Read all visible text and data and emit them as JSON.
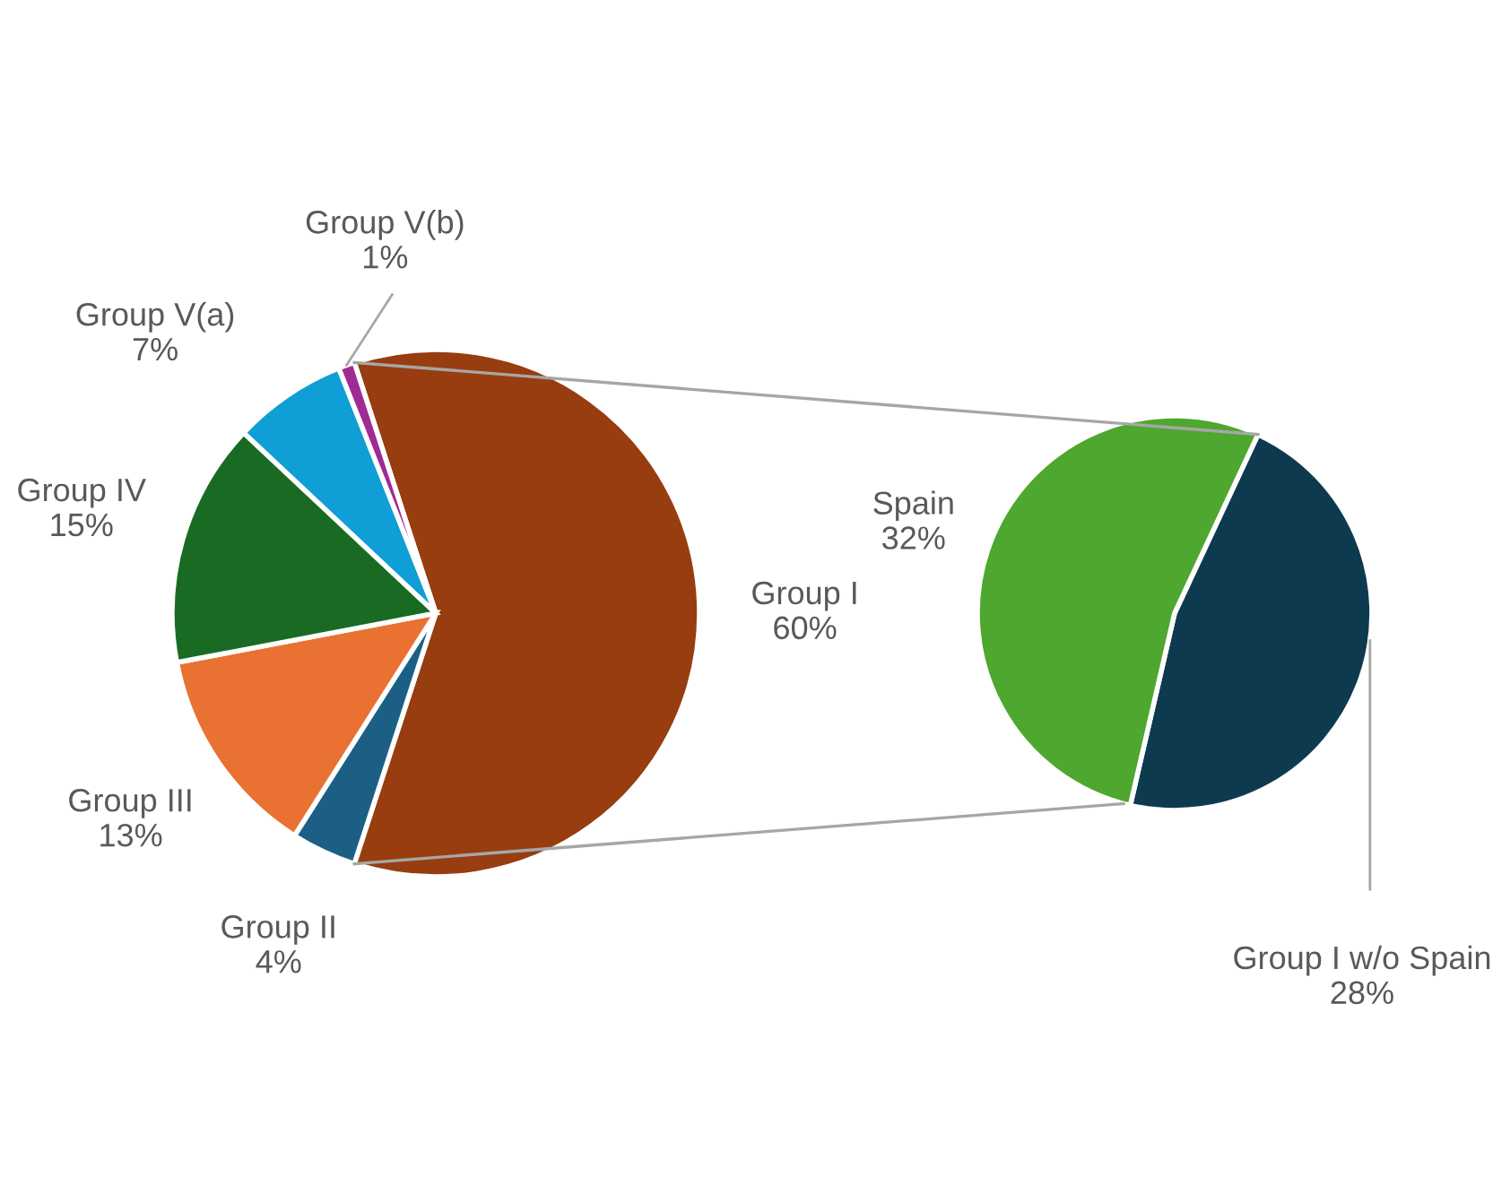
{
  "chart_data": [
    {
      "type": "pie",
      "categories": [
        "Group I",
        "Group II",
        "Group III",
        "Group IV",
        "Group V(a)",
        "Group V(b)"
      ],
      "values": [
        60,
        4,
        13,
        15,
        7,
        1
      ],
      "value_labels": [
        "60%",
        "4%",
        "13%",
        "15%",
        "7%",
        "1%"
      ],
      "colors": [
        "#973d10",
        "#1c5f85",
        "#e97132",
        "#196b24",
        "#0f9ed5",
        "#a02b93"
      ]
    },
    {
      "type": "pie",
      "categories": [
        "Group I w/o Spain",
        "Spain"
      ],
      "values": [
        28,
        32
      ],
      "value_labels": [
        "28%",
        "32%"
      ],
      "colors": [
        "#0e3a4f",
        "#4ea72e"
      ]
    }
  ]
}
